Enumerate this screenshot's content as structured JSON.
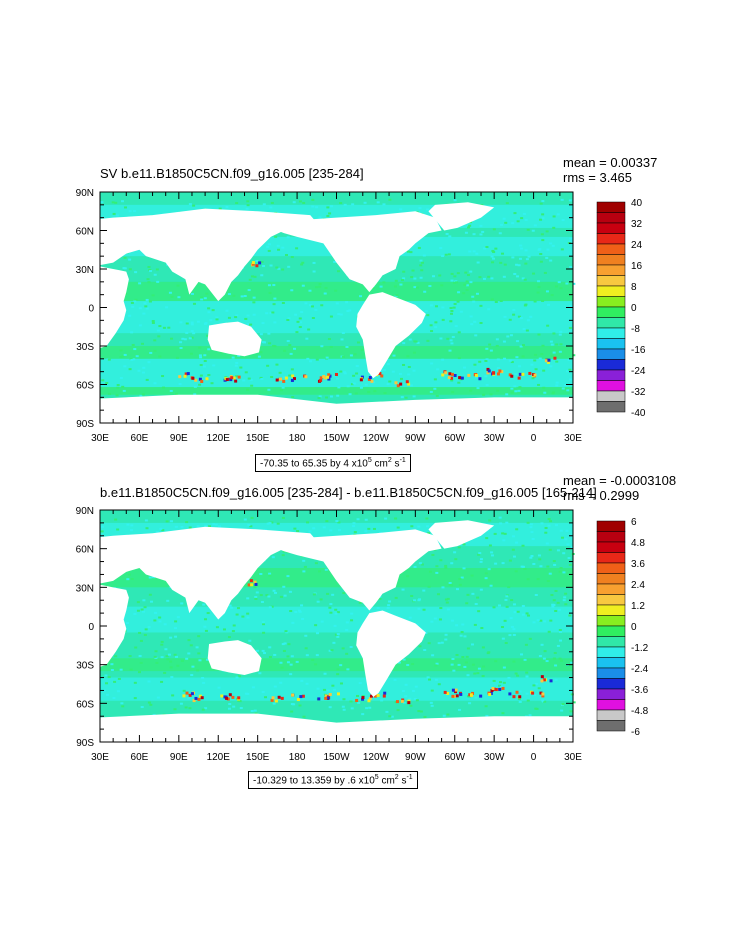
{
  "maps": [
    {
      "title": "SV b.e11.B1850C5CN.f09_g16.005 [235-284]",
      "mean_label": "mean = 0.00337",
      "rms_label": "rms = 3.465",
      "range_text": "-70.35 to 65.35 by 4 x10",
      "range_exp": "5",
      "range_unit": " cm",
      "range_unit_exp": "2",
      "range_tail": " s",
      "range_tail_exp": "-1",
      "lat_labels": [
        "90N",
        "60N",
        "30N",
        "0",
        "30S",
        "60S",
        "90S"
      ],
      "lon_labels": [
        "30E",
        "60E",
        "90E",
        "120E",
        "150E",
        "180",
        "150W",
        "120W",
        "90W",
        "60W",
        "30W",
        "0",
        "30E"
      ],
      "colorbar_labels": [
        "40",
        "32",
        "24",
        "16",
        "8",
        "0",
        "-8",
        "-16",
        "-24",
        "-32",
        "-40"
      ]
    },
    {
      "title": "b.e11.B1850C5CN.f09_g16.005 [235-284] - b.e11.B1850C5CN.f09_g16.005 [165-214]",
      "mean_label": "mean = -0.0003108",
      "rms_label": "rms = 0.2999",
      "range_text": "-10.329 to 13.359 by .6 x10",
      "range_exp": "5",
      "range_unit": " cm",
      "range_unit_exp": "2",
      "range_tail": " s",
      "range_tail_exp": "-1",
      "lat_labels": [
        "90N",
        "60N",
        "30N",
        "0",
        "30S",
        "60S",
        "90S"
      ],
      "lon_labels": [
        "30E",
        "60E",
        "90E",
        "120E",
        "150E",
        "180",
        "150W",
        "120W",
        "90W",
        "60W",
        "30W",
        "0",
        "30E"
      ],
      "colorbar_labels": [
        "6",
        "4.8",
        "3.6",
        "2.4",
        "1.2",
        "0",
        "-1.2",
        "-2.4",
        "-3.6",
        "-4.8",
        "-6"
      ]
    }
  ],
  "colors": {
    "ocean_main": "#2fe8b6",
    "ocean_alt": "#33f2ee",
    "ocean_green": "#33ee77",
    "land": "#ffffff",
    "colorbar": [
      "#6e6e6e",
      "#c8c8c8",
      "#e010e0",
      "#8a20d8",
      "#1a2ad8",
      "#1a8ee8",
      "#1ac2f0",
      "#30eee8",
      "#30e8a8",
      "#30ee60",
      "#88ee20",
      "#f0ee20",
      "#f8c840",
      "#f8a030",
      "#f08020",
      "#f06018",
      "#e82818",
      "#c80010",
      "#b80010",
      "#a00000"
    ]
  }
}
